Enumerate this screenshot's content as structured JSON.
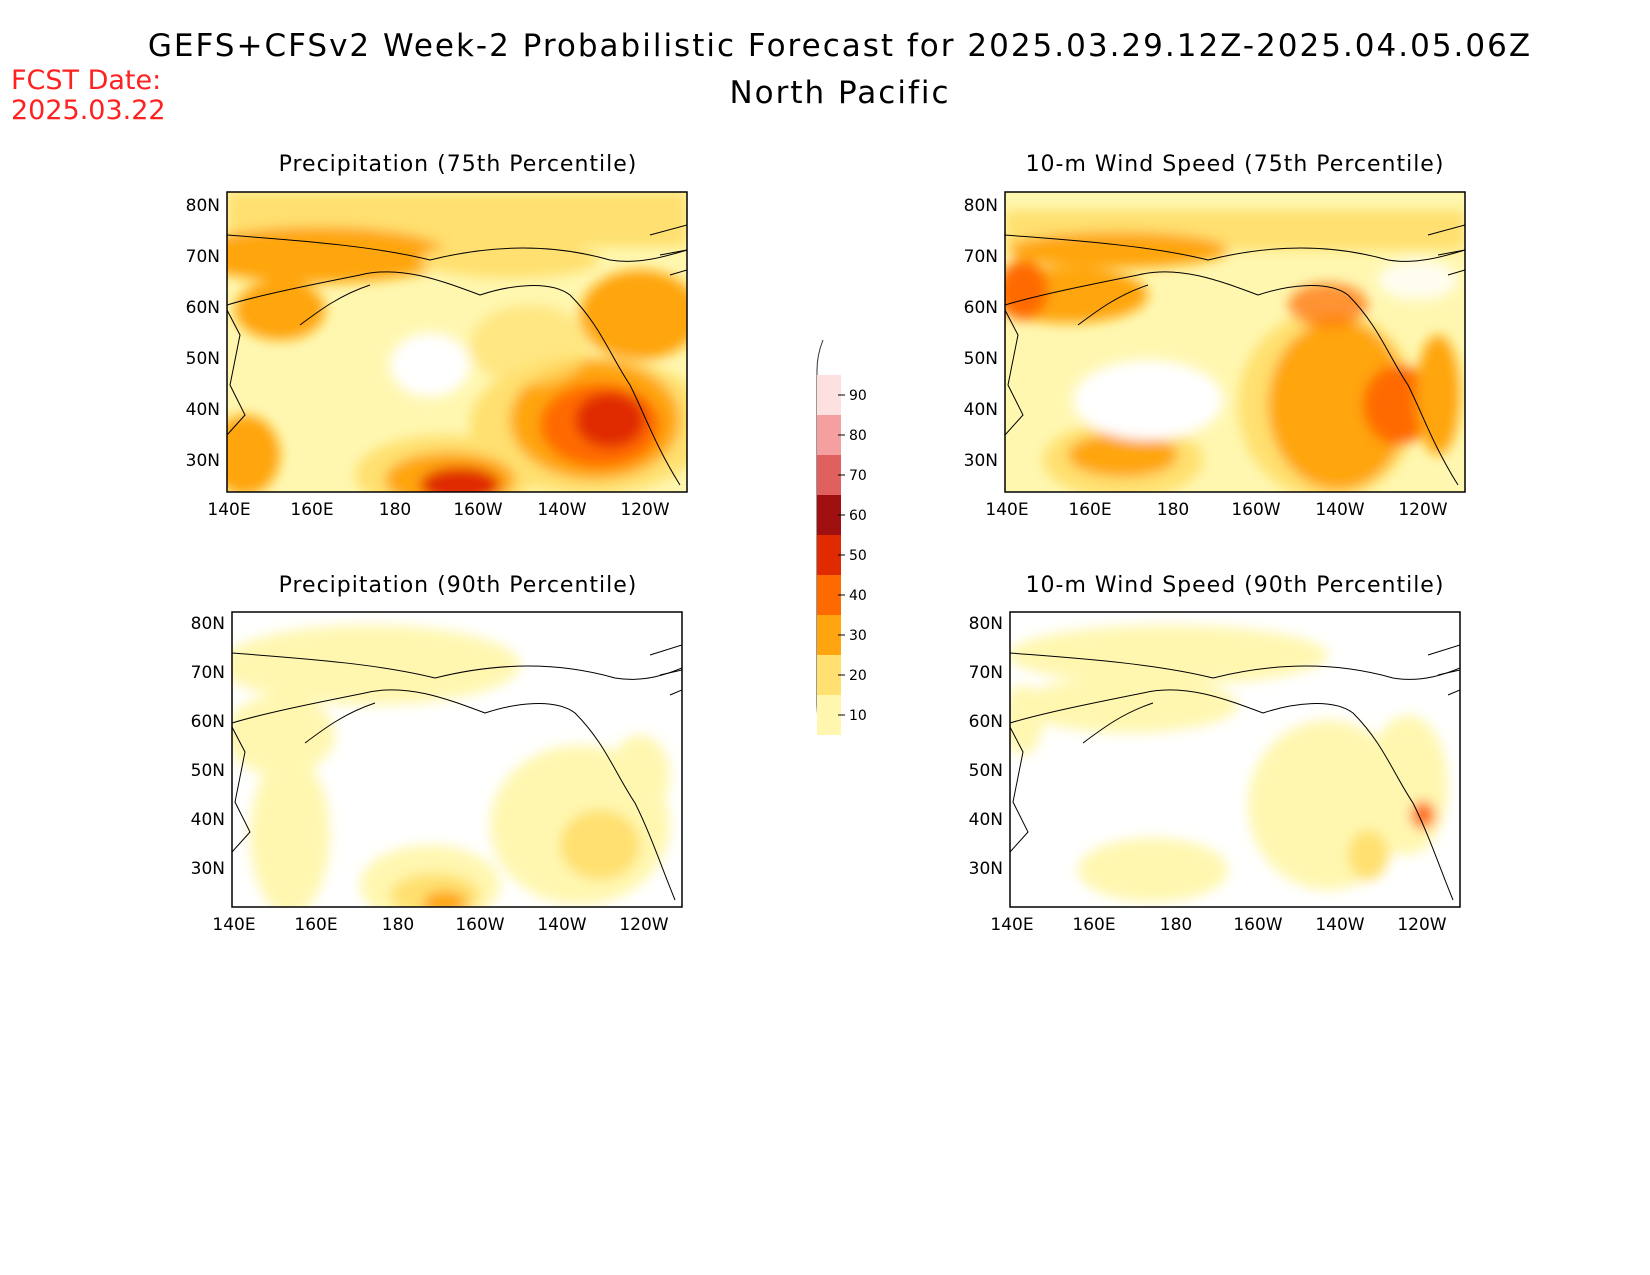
{
  "header": {
    "title": "GEFS+CFSv2 Week-2 Probabilistic Forecast for 2025.03.29.12Z-2025.04.05.06Z",
    "region": "North Pacific",
    "fcst_date_label": "FCST Date:",
    "fcst_date": "2025.03.22"
  },
  "axes": {
    "lon_ticks": [
      "140E",
      "160E",
      "180",
      "160W",
      "140W",
      "120W"
    ],
    "lat_ticks": [
      "80N",
      "70N",
      "60N",
      "50N",
      "40N",
      "30N"
    ]
  },
  "panels": [
    {
      "title": "Precipitation (75th Percentile)"
    },
    {
      "title": "10-m Wind Speed (75th Percentile)"
    },
    {
      "title": "Precipitation (90th Percentile)"
    },
    {
      "title": "10-m Wind Speed (90th Percentile)"
    }
  ],
  "colorbar": {
    "labels": [
      "90",
      "80",
      "70",
      "60",
      "50",
      "40",
      "30",
      "20",
      "10"
    ],
    "colors": [
      "#fde0e0",
      "#f4a0a0",
      "#e06060",
      "#a01010",
      "#e02a00",
      "#ff6a00",
      "#ffa510",
      "#ffe070",
      "#fff7b0"
    ]
  },
  "palette": {
    "title_color": "#000000",
    "fcst_color": "#ff2020"
  }
}
